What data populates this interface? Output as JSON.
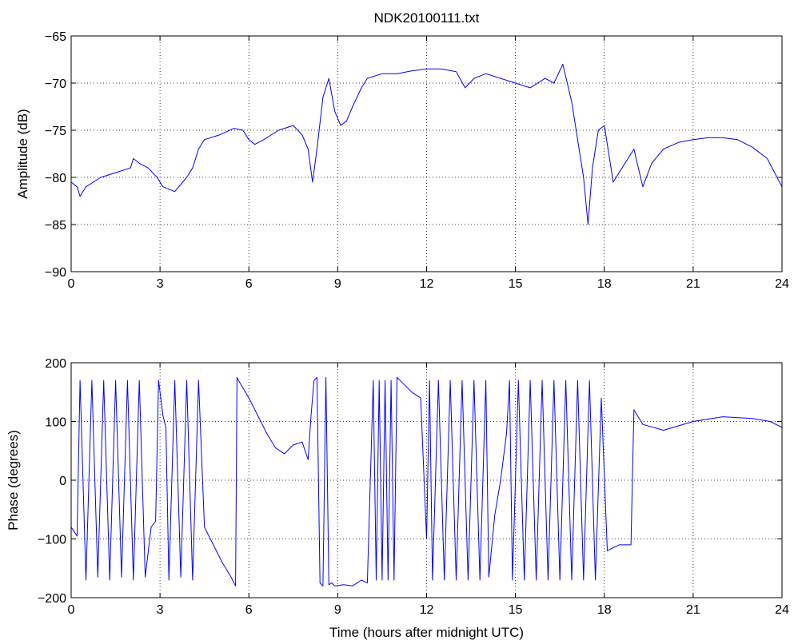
{
  "figure": {
    "title": "NDK20100111.txt",
    "line_color": "#0000ff",
    "background": "#ffffff"
  },
  "chart_data": [
    {
      "type": "line",
      "title": "NDK20100111.txt",
      "xlabel": "",
      "ylabel": "Amplitude (dB)",
      "xlim": [
        0,
        24
      ],
      "ylim": [
        -90,
        -65
      ],
      "xticks": [
        0,
        3,
        6,
        9,
        12,
        15,
        18,
        21,
        24
      ],
      "yticks": [
        -90,
        -85,
        -80,
        -75,
        -70,
        -65
      ],
      "grid": true,
      "series": [
        {
          "color": "#0000ff",
          "x": [
            0,
            0.2,
            0.3,
            0.5,
            1.0,
            1.5,
            2.0,
            2.1,
            2.3,
            2.6,
            2.9,
            3.1,
            3.5,
            3.9,
            4.1,
            4.3,
            4.5,
            5.0,
            5.5,
            5.8,
            6.0,
            6.2,
            6.5,
            7.0,
            7.5,
            7.8,
            8.0,
            8.15,
            8.3,
            8.5,
            8.7,
            8.9,
            9.1,
            9.3,
            9.5,
            9.8,
            10.0,
            10.5,
            11.0,
            11.5,
            12.0,
            12.5,
            13.0,
            13.3,
            13.6,
            14.0,
            14.5,
            15.0,
            15.5,
            16.0,
            16.3,
            16.6,
            16.9,
            17.1,
            17.3,
            17.45,
            17.6,
            17.8,
            18.0,
            18.3,
            18.6,
            19.0,
            19.3,
            19.6,
            20.0,
            20.5,
            21.0,
            21.5,
            22.0,
            22.5,
            23.0,
            23.5,
            24.0
          ],
          "y": [
            -80.5,
            -81,
            -82,
            -81,
            -80,
            -79.5,
            -79,
            -78,
            -78.5,
            -79,
            -80,
            -81,
            -81.5,
            -80,
            -79,
            -77,
            -76,
            -75.5,
            -74.8,
            -75,
            -76,
            -76.5,
            -76,
            -75,
            -74.5,
            -75.5,
            -77,
            -80.5,
            -77,
            -71.5,
            -69.5,
            -73,
            -74.5,
            -74,
            -72.5,
            -70.5,
            -69.5,
            -69,
            -69,
            -68.7,
            -68.5,
            -68.5,
            -68.8,
            -70.5,
            -69.5,
            -69,
            -69.5,
            -70,
            -70.5,
            -69.5,
            -70,
            -68,
            -72,
            -76,
            -80,
            -85,
            -79,
            -75,
            -74.5,
            -80.5,
            -79,
            -77,
            -81,
            -78.5,
            -77,
            -76.3,
            -76,
            -75.8,
            -75.8,
            -76,
            -76.8,
            -78,
            -81
          ]
        }
      ]
    },
    {
      "type": "line",
      "title": "",
      "xlabel": "Time (hours after midnight UTC)",
      "ylabel": "Phase (degrees)",
      "xlim": [
        0,
        24
      ],
      "ylim": [
        -200,
        200
      ],
      "xticks": [
        0,
        3,
        6,
        9,
        12,
        15,
        18,
        21,
        24
      ],
      "yticks": [
        -200,
        -100,
        0,
        100,
        200
      ],
      "grid": true,
      "series": [
        {
          "color": "#0000ff",
          "x": [
            0,
            0.2,
            0.3,
            0.5,
            0.7,
            0.9,
            1.1,
            1.3,
            1.5,
            1.7,
            1.9,
            2.1,
            2.3,
            2.5,
            2.7,
            2.85,
            2.95,
            3.1,
            3.2,
            3.3,
            3.5,
            3.7,
            3.9,
            4.1,
            4.3,
            4.5,
            4.8,
            5.1,
            5.4,
            5.55,
            5.6,
            5.65,
            6.0,
            6.3,
            6.6,
            6.9,
            7.2,
            7.5,
            7.8,
            8.0,
            8.1,
            8.2,
            8.3,
            8.4,
            8.5,
            8.6,
            8.7,
            8.8,
            8.9,
            9.2,
            9.5,
            9.8,
            10.0,
            10.2,
            10.3,
            10.4,
            10.5,
            10.6,
            10.7,
            10.8,
            10.9,
            11.0,
            11.2,
            11.5,
            11.8,
            12.0,
            12.1,
            12.2,
            12.4,
            12.6,
            12.8,
            13.0,
            13.2,
            13.4,
            13.6,
            13.8,
            14.0,
            14.1,
            14.3,
            14.5,
            14.7,
            14.8,
            14.9,
            15.1,
            15.3,
            15.5,
            15.7,
            15.9,
            16.1,
            16.3,
            16.5,
            16.7,
            16.9,
            17.1,
            17.3,
            17.5,
            17.7,
            17.9,
            18.1,
            18.5,
            18.9,
            19.0,
            19.3,
            20.0,
            21.0,
            22.0,
            23.0,
            23.6,
            24.0
          ],
          "y": [
            -80,
            -95,
            170,
            -170,
            170,
            -165,
            170,
            -170,
            170,
            -165,
            170,
            -170,
            170,
            -165,
            -80,
            -70,
            170,
            110,
            90,
            -170,
            170,
            -165,
            170,
            -170,
            170,
            -80,
            -110,
            -140,
            -165,
            -180,
            175,
            170,
            140,
            110,
            80,
            55,
            45,
            60,
            65,
            35,
            110,
            170,
            175,
            -175,
            -180,
            175,
            -178,
            -175,
            -180,
            -178,
            -180,
            -170,
            -175,
            170,
            -170,
            170,
            -170,
            170,
            -170,
            170,
            -170,
            175,
            165,
            150,
            140,
            -100,
            170,
            -170,
            170,
            -170,
            170,
            -170,
            170,
            -170,
            170,
            -170,
            170,
            -165,
            -60,
            0,
            80,
            170,
            -170,
            170,
            -170,
            170,
            -170,
            170,
            -170,
            170,
            -170,
            170,
            -170,
            170,
            -170,
            170,
            -170,
            140,
            -120,
            -110,
            -110,
            120,
            95,
            85,
            100,
            108,
            105,
            100,
            90
          ]
        }
      ]
    }
  ]
}
